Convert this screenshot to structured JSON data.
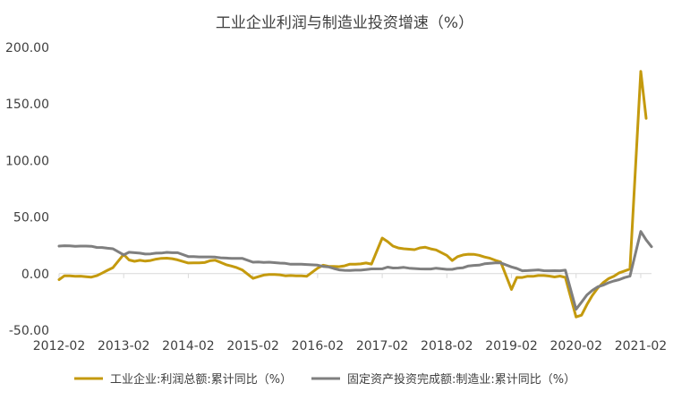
{
  "chart_data": {
    "type": "line",
    "title": "工业企业利润与制造业投资增速（%）",
    "xlabel": "",
    "ylabel": "",
    "ylim": [
      -50,
      200
    ],
    "yticks": [
      "200.00",
      "150.00",
      "100.00",
      "50.00",
      "0.00",
      "-50.00"
    ],
    "ytick_values": [
      200,
      150,
      100,
      50,
      0,
      -50
    ],
    "xticks": [
      "2012-02",
      "2013-02",
      "2014-02",
      "2015-02",
      "2016-02",
      "2017-02",
      "2018-02",
      "2019-02",
      "2020-02",
      "2021-02"
    ],
    "x_domain": [
      "2012-02",
      "2021-04"
    ],
    "grid": false,
    "legend_position": "bottom",
    "series": [
      {
        "name": "工业企业:利润总额:累计同比（%）",
        "color": "#C49A0E",
        "points": [
          [
            "2012-02",
            -5.3
          ],
          [
            "2012-03",
            -1.9
          ],
          [
            "2012-04",
            -2.0
          ],
          [
            "2012-05",
            -2.4
          ],
          [
            "2012-06",
            -2.2
          ],
          [
            "2012-07",
            -2.7
          ],
          [
            "2012-08",
            -3.1
          ],
          [
            "2012-09",
            -1.8
          ],
          [
            "2012-10",
            0.5
          ],
          [
            "2012-11",
            3.0
          ],
          [
            "2012-12",
            5.3
          ],
          [
            "2013-02",
            17.0
          ],
          [
            "2013-03",
            12.1
          ],
          [
            "2013-04",
            10.9
          ],
          [
            "2013-05",
            11.8
          ],
          [
            "2013-06",
            11.1
          ],
          [
            "2013-07",
            11.6
          ],
          [
            "2013-08",
            12.8
          ],
          [
            "2013-09",
            13.5
          ],
          [
            "2013-10",
            13.7
          ],
          [
            "2013-11",
            13.2
          ],
          [
            "2013-12",
            12.2
          ],
          [
            "2014-02",
            9.4
          ],
          [
            "2014-03",
            9.6
          ],
          [
            "2014-04",
            9.6
          ],
          [
            "2014-05",
            9.8
          ],
          [
            "2014-06",
            11.4
          ],
          [
            "2014-07",
            11.9
          ],
          [
            "2014-08",
            10.0
          ],
          [
            "2014-09",
            7.9
          ],
          [
            "2014-10",
            6.7
          ],
          [
            "2014-11",
            5.3
          ],
          [
            "2014-12",
            3.3
          ],
          [
            "2015-02",
            -4.2
          ],
          [
            "2015-03",
            -2.7
          ],
          [
            "2015-04",
            -1.3
          ],
          [
            "2015-05",
            -0.8
          ],
          [
            "2015-06",
            -0.7
          ],
          [
            "2015-07",
            -1.0
          ],
          [
            "2015-08",
            -1.9
          ],
          [
            "2015-09",
            -1.7
          ],
          [
            "2015-10",
            -2.0
          ],
          [
            "2015-11",
            -1.9
          ],
          [
            "2015-12",
            -2.3
          ],
          [
            "2016-02",
            4.8
          ],
          [
            "2016-03",
            7.4
          ],
          [
            "2016-04",
            6.5
          ],
          [
            "2016-05",
            6.4
          ],
          [
            "2016-06",
            6.2
          ],
          [
            "2016-07",
            6.9
          ],
          [
            "2016-08",
            8.4
          ],
          [
            "2016-09",
            8.4
          ],
          [
            "2016-10",
            8.6
          ],
          [
            "2016-11",
            9.4
          ],
          [
            "2016-12",
            8.5
          ],
          [
            "2017-02",
            31.5
          ],
          [
            "2017-03",
            28.3
          ],
          [
            "2017-04",
            24.4
          ],
          [
            "2017-05",
            22.7
          ],
          [
            "2017-06",
            22.0
          ],
          [
            "2017-07",
            21.6
          ],
          [
            "2017-08",
            21.2
          ],
          [
            "2017-09",
            22.8
          ],
          [
            "2017-10",
            23.3
          ],
          [
            "2017-11",
            21.9
          ],
          [
            "2017-12",
            21.0
          ],
          [
            "2018-02",
            16.1
          ],
          [
            "2018-03",
            11.6
          ],
          [
            "2018-04",
            15.0
          ],
          [
            "2018-05",
            16.5
          ],
          [
            "2018-06",
            17.2
          ],
          [
            "2018-07",
            17.1
          ],
          [
            "2018-08",
            16.2
          ],
          [
            "2018-09",
            14.7
          ],
          [
            "2018-10",
            13.6
          ],
          [
            "2018-11",
            11.8
          ],
          [
            "2018-12",
            10.3
          ],
          [
            "2019-02",
            -14.0
          ],
          [
            "2019-03",
            -3.3
          ],
          [
            "2019-04",
            -3.4
          ],
          [
            "2019-05",
            -2.3
          ],
          [
            "2019-06",
            -2.4
          ],
          [
            "2019-07",
            -1.7
          ],
          [
            "2019-08",
            -1.7
          ],
          [
            "2019-09",
            -2.1
          ],
          [
            "2019-10",
            -2.9
          ],
          [
            "2019-11",
            -2.1
          ],
          [
            "2019-12",
            -3.3
          ],
          [
            "2020-02",
            -38.3
          ],
          [
            "2020-03",
            -36.7
          ],
          [
            "2020-04",
            -27.4
          ],
          [
            "2020-05",
            -19.3
          ],
          [
            "2020-06",
            -12.8
          ],
          [
            "2020-07",
            -8.1
          ],
          [
            "2020-08",
            -4.4
          ],
          [
            "2020-09",
            -2.4
          ],
          [
            "2020-10",
            0.7
          ],
          [
            "2020-11",
            2.4
          ],
          [
            "2020-12",
            4.1
          ],
          [
            "2021-02",
            178.9
          ],
          [
            "2021-03",
            137.3
          ]
        ]
      },
      {
        "name": "固定资产投资完成额:制造业:累计同比（%）",
        "color": "#7F7F7F",
        "points": [
          [
            "2012-02",
            24.4
          ],
          [
            "2012-03",
            24.7
          ],
          [
            "2012-04",
            24.6
          ],
          [
            "2012-05",
            24.2
          ],
          [
            "2012-06",
            24.4
          ],
          [
            "2012-07",
            24.4
          ],
          [
            "2012-08",
            24.2
          ],
          [
            "2012-09",
            23.2
          ],
          [
            "2012-10",
            23.1
          ],
          [
            "2012-11",
            22.5
          ],
          [
            "2012-12",
            22.0
          ],
          [
            "2013-02",
            16.6
          ],
          [
            "2013-03",
            18.9
          ],
          [
            "2013-04",
            18.5
          ],
          [
            "2013-05",
            18.1
          ],
          [
            "2013-06",
            17.3
          ],
          [
            "2013-07",
            17.5
          ],
          [
            "2013-08",
            18.1
          ],
          [
            "2013-09",
            18.2
          ],
          [
            "2013-10",
            18.8
          ],
          [
            "2013-11",
            18.5
          ],
          [
            "2013-12",
            18.5
          ],
          [
            "2014-02",
            15.1
          ],
          [
            "2014-03",
            15.0
          ],
          [
            "2014-04",
            14.8
          ],
          [
            "2014-05",
            14.8
          ],
          [
            "2014-06",
            14.8
          ],
          [
            "2014-07",
            14.6
          ],
          [
            "2014-08",
            14.0
          ],
          [
            "2014-09",
            13.8
          ],
          [
            "2014-10",
            13.5
          ],
          [
            "2014-11",
            13.5
          ],
          [
            "2014-12",
            13.5
          ],
          [
            "2015-02",
            10.1
          ],
          [
            "2015-03",
            10.4
          ],
          [
            "2015-04",
            10.0
          ],
          [
            "2015-05",
            10.1
          ],
          [
            "2015-06",
            9.7
          ],
          [
            "2015-07",
            9.3
          ],
          [
            "2015-08",
            9.1
          ],
          [
            "2015-09",
            8.3
          ],
          [
            "2015-10",
            8.3
          ],
          [
            "2015-11",
            8.3
          ],
          [
            "2015-12",
            8.1
          ],
          [
            "2016-02",
            7.5
          ],
          [
            "2016-03",
            6.4
          ],
          [
            "2016-04",
            6.0
          ],
          [
            "2016-05",
            4.6
          ],
          [
            "2016-06",
            3.3
          ],
          [
            "2016-07",
            2.9
          ],
          [
            "2016-08",
            2.8
          ],
          [
            "2016-09",
            3.1
          ],
          [
            "2016-10",
            3.1
          ],
          [
            "2016-11",
            3.6
          ],
          [
            "2016-12",
            4.2
          ],
          [
            "2017-02",
            4.3
          ],
          [
            "2017-03",
            5.8
          ],
          [
            "2017-04",
            5.0
          ],
          [
            "2017-05",
            5.1
          ],
          [
            "2017-06",
            5.5
          ],
          [
            "2017-07",
            4.8
          ],
          [
            "2017-08",
            4.5
          ],
          [
            "2017-09",
            4.2
          ],
          [
            "2017-10",
            4.1
          ],
          [
            "2017-11",
            4.1
          ],
          [
            "2017-12",
            4.8
          ],
          [
            "2018-02",
            3.8
          ],
          [
            "2018-03",
            3.8
          ],
          [
            "2018-04",
            4.8
          ],
          [
            "2018-05",
            5.2
          ],
          [
            "2018-06",
            6.8
          ],
          [
            "2018-07",
            7.3
          ],
          [
            "2018-08",
            7.5
          ],
          [
            "2018-09",
            8.7
          ],
          [
            "2018-10",
            9.1
          ],
          [
            "2018-11",
            9.5
          ],
          [
            "2018-12",
            9.5
          ],
          [
            "2019-02",
            5.9
          ],
          [
            "2019-03",
            4.6
          ],
          [
            "2019-04",
            2.5
          ],
          [
            "2019-05",
            2.7
          ],
          [
            "2019-06",
            3.0
          ],
          [
            "2019-07",
            3.3
          ],
          [
            "2019-08",
            2.6
          ],
          [
            "2019-09",
            2.5
          ],
          [
            "2019-10",
            2.6
          ],
          [
            "2019-11",
            2.5
          ],
          [
            "2019-12",
            3.1
          ],
          [
            "2020-02",
            -31.5
          ],
          [
            "2020-03",
            -25.2
          ],
          [
            "2020-04",
            -18.8
          ],
          [
            "2020-05",
            -14.8
          ],
          [
            "2020-06",
            -11.7
          ],
          [
            "2020-07",
            -10.2
          ],
          [
            "2020-08",
            -8.1
          ],
          [
            "2020-09",
            -6.5
          ],
          [
            "2020-10",
            -5.3
          ],
          [
            "2020-11",
            -3.5
          ],
          [
            "2020-12",
            -2.2
          ],
          [
            "2021-02",
            37.3
          ],
          [
            "2021-03",
            29.8
          ],
          [
            "2021-04",
            23.8
          ]
        ]
      }
    ]
  }
}
